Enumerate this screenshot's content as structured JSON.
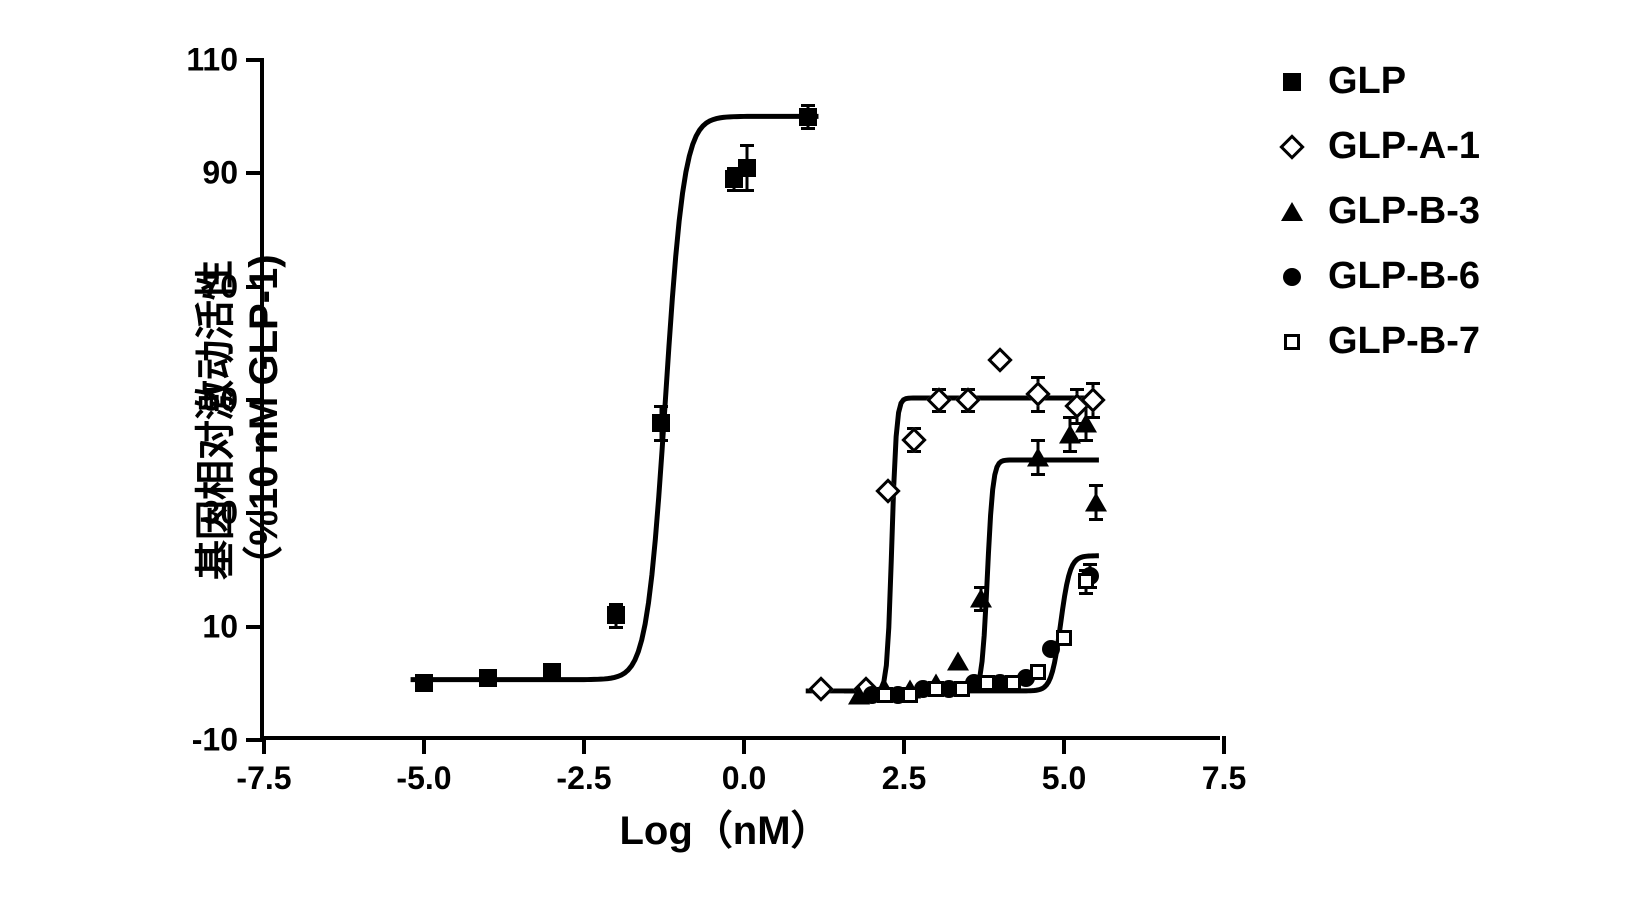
{
  "chart": {
    "type": "line-scatter-dose-response",
    "x_label": "Log（nM）",
    "y_label_line1": "基因相对激动活性",
    "y_label_line2": "（%10 nM GLP-1)",
    "x_ticks": [
      -7.5,
      -5.0,
      -2.5,
      0.0,
      2.5,
      5.0,
      7.5
    ],
    "y_ticks": [
      -10,
      10,
      30,
      50,
      70,
      90,
      110
    ],
    "xlim": [
      -7.5,
      7.5
    ],
    "ylim": [
      -10,
      110
    ],
    "axis_color": "#000000",
    "axis_width": 4,
    "tick_length": 18,
    "background_color": "#ffffff",
    "label_fontsize": 40,
    "tick_fontsize": 32,
    "font_weight": "bold",
    "curve_line_width": 5,
    "curve_color": "#000000",
    "error_bar_color": "#000000",
    "error_bar_width": 3,
    "error_cap_width": 14,
    "series": [
      {
        "name": "GLP",
        "marker": "filled-square",
        "marker_size": 18,
        "marker_color": "#000000",
        "curve": {
          "bottom": 0,
          "top": 100,
          "ec50_log": -1.2,
          "x_start": -5.2,
          "x_end": 1.2,
          "hill": 3.0
        },
        "points": [
          {
            "x": -5.0,
            "y": 0,
            "err": 0
          },
          {
            "x": -4.0,
            "y": 1,
            "err": 0
          },
          {
            "x": -3.0,
            "y": 2,
            "err": 0
          },
          {
            "x": -2.0,
            "y": 12,
            "err": 2
          },
          {
            "x": -1.3,
            "y": 46,
            "err": 3
          },
          {
            "x": -0.15,
            "y": 89,
            "err": 2
          },
          {
            "x": 0.05,
            "y": 91,
            "err": 4
          },
          {
            "x": 1.0,
            "y": 100,
            "err": 2
          }
        ]
      },
      {
        "name": "GLP-A-1",
        "marker": "open-diamond",
        "marker_size": 18,
        "marker_color": "#000000",
        "curve": {
          "bottom": -2,
          "top": 50,
          "ec50_log": 2.35,
          "x_start": 1.0,
          "x_end": 5.6,
          "hill": 12
        },
        "points": [
          {
            "x": 1.2,
            "y": -1,
            "err": 0
          },
          {
            "x": 1.9,
            "y": -1,
            "err": 0
          },
          {
            "x": 2.25,
            "y": 34,
            "err": 0
          },
          {
            "x": 2.65,
            "y": 43,
            "err": 2
          },
          {
            "x": 3.05,
            "y": 50,
            "err": 2
          },
          {
            "x": 3.5,
            "y": 50,
            "err": 2
          },
          {
            "x": 4.0,
            "y": 57,
            "err": 0
          },
          {
            "x": 4.6,
            "y": 51,
            "err": 3
          },
          {
            "x": 5.2,
            "y": 49,
            "err": 3
          },
          {
            "x": 5.45,
            "y": 50,
            "err": 3
          }
        ]
      },
      {
        "name": "GLP-B-3",
        "marker": "filled-triangle",
        "marker_size": 19,
        "marker_color": "#000000",
        "curve": {
          "bottom": -2,
          "top": 39,
          "ec50_log": 3.85,
          "x_start": 1.6,
          "x_end": 5.6,
          "hill": 10
        },
        "points": [
          {
            "x": 1.8,
            "y": -2,
            "err": 0
          },
          {
            "x": 2.2,
            "y": -1,
            "err": 0
          },
          {
            "x": 2.6,
            "y": -1,
            "err": 0
          },
          {
            "x": 3.0,
            "y": 0,
            "err": 0
          },
          {
            "x": 3.35,
            "y": 4,
            "err": 0
          },
          {
            "x": 3.7,
            "y": 15,
            "err": 2
          },
          {
            "x": 4.6,
            "y": 40,
            "err": 3
          },
          {
            "x": 5.1,
            "y": 44,
            "err": 3
          },
          {
            "x": 5.35,
            "y": 46,
            "err": 3
          },
          {
            "x": 5.5,
            "y": 32,
            "err": 3
          }
        ]
      },
      {
        "name": "GLP-B-6",
        "marker": "filled-circle",
        "marker_size": 18,
        "marker_color": "#000000",
        "curve": {
          "bottom": -2,
          "top": 22,
          "ec50_log": 5.0,
          "x_start": 1.8,
          "x_end": 5.6,
          "hill": 6
        },
        "points": [
          {
            "x": 2.0,
            "y": -2,
            "err": 0
          },
          {
            "x": 2.4,
            "y": -2,
            "err": 0
          },
          {
            "x": 2.8,
            "y": -1,
            "err": 0
          },
          {
            "x": 3.2,
            "y": -1,
            "err": 0
          },
          {
            "x": 3.6,
            "y": 0,
            "err": 0
          },
          {
            "x": 4.0,
            "y": 0,
            "err": 0
          },
          {
            "x": 4.4,
            "y": 1,
            "err": 0
          },
          {
            "x": 4.8,
            "y": 6,
            "err": 0
          },
          {
            "x": 5.4,
            "y": 19,
            "err": 2
          }
        ]
      },
      {
        "name": "GLP-B-7",
        "marker": "open-square",
        "marker_size": 16,
        "marker_color": "#000000",
        "curve": null,
        "points": [
          {
            "x": 2.2,
            "y": -2,
            "err": 0
          },
          {
            "x": 2.6,
            "y": -2,
            "err": 0
          },
          {
            "x": 3.0,
            "y": -1,
            "err": 0
          },
          {
            "x": 3.4,
            "y": -1,
            "err": 0
          },
          {
            "x": 3.8,
            "y": 0,
            "err": 0
          },
          {
            "x": 4.2,
            "y": 0,
            "err": 0
          },
          {
            "x": 4.6,
            "y": 2,
            "err": 0
          },
          {
            "x": 5.0,
            "y": 8,
            "err": 0
          },
          {
            "x": 5.35,
            "y": 18,
            "err": 2
          }
        ]
      }
    ],
    "legend": {
      "position": "right",
      "fontsize": 38,
      "items": [
        {
          "label": "GLP",
          "marker": "filled-square"
        },
        {
          "label": "GLP-A-1",
          "marker": "open-diamond"
        },
        {
          "label": "GLP-B-3",
          "marker": "filled-triangle"
        },
        {
          "label": "GLP-B-6",
          "marker": "filled-circle"
        },
        {
          "label": "GLP-B-7",
          "marker": "open-square"
        }
      ]
    }
  }
}
